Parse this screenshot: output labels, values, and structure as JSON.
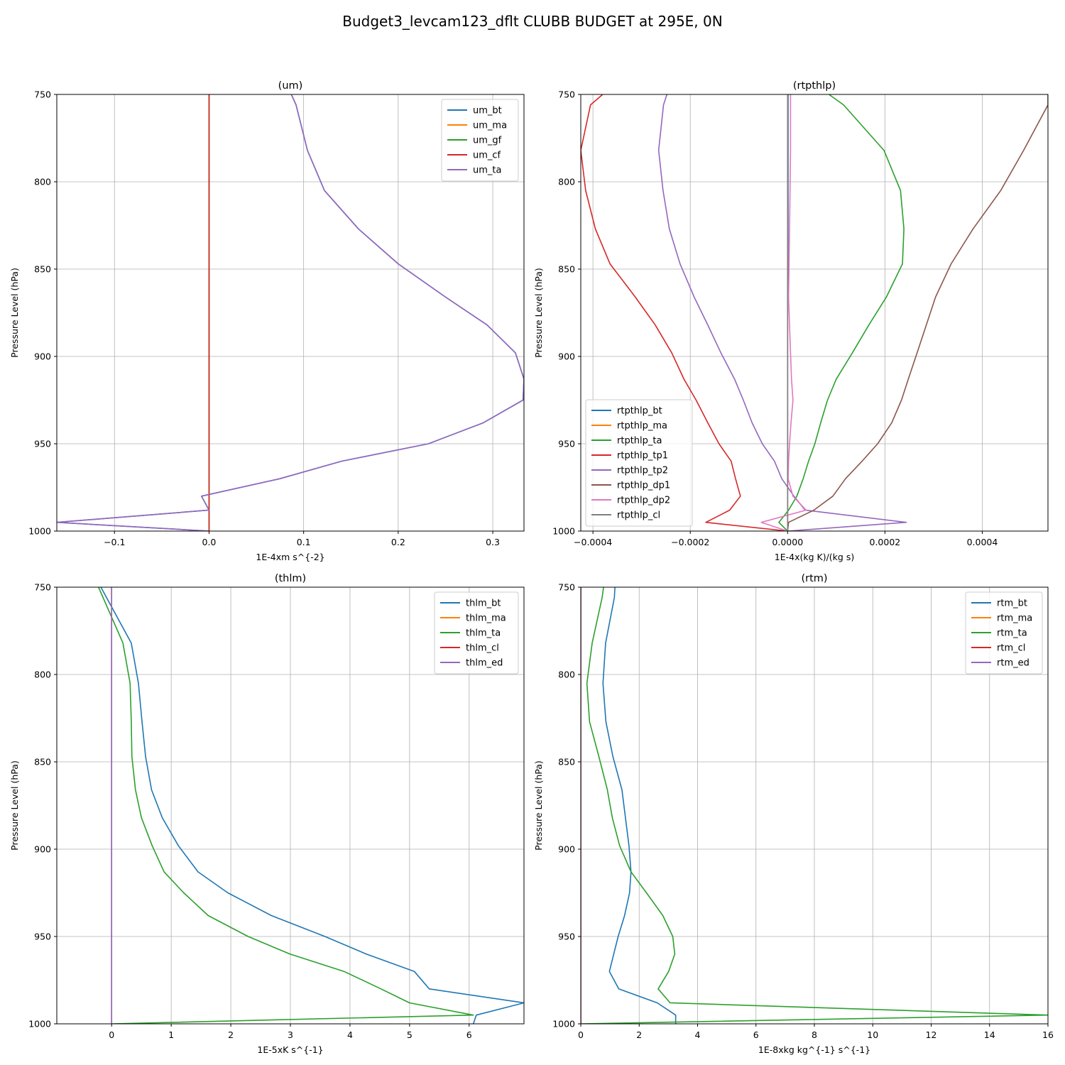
{
  "suptitle": "Budget3_levcam123_dflt CLUBB BUDGET at 295E, 0N",
  "chart_data": [
    {
      "type": "line",
      "title": "(um)",
      "xlabel": "1E-4xm s^{-2}",
      "ylabel": "Pressure Level (hPa)",
      "xlim": [
        -0.161,
        0.333
      ],
      "ylim": [
        1000,
        750
      ],
      "xticks": [
        -0.1,
        0.0,
        0.1,
        0.2,
        0.3
      ],
      "xticklabels": [
        "−0.1",
        "0.0",
        "0.1",
        "0.2",
        "0.3"
      ],
      "yticks": [
        750,
        800,
        850,
        900,
        950,
        1000
      ],
      "grid": true,
      "legend_loc": "upper right",
      "p": [
        750,
        756,
        782,
        805,
        827,
        847,
        866,
        882,
        898,
        913,
        925,
        938,
        950,
        960,
        970,
        980,
        988,
        995,
        1000
      ],
      "series": [
        {
          "name": "um_bt",
          "color": "#1f77b4",
          "values": [
            0.087,
            0.092,
            0.104,
            0.122,
            0.158,
            0.2,
            0.25,
            0.294,
            0.324,
            0.333,
            0.332,
            0.29,
            0.232,
            0.14,
            0.075,
            -0.008,
            0.0,
            -0.161,
            0.0
          ]
        },
        {
          "name": "um_ma",
          "color": "#ff7f0e",
          "values": [
            0,
            0,
            0,
            0,
            0,
            0,
            0,
            0,
            0,
            0,
            0,
            0,
            0,
            0,
            0,
            0,
            0,
            0,
            0
          ]
        },
        {
          "name": "um_gf",
          "color": "#2ca02c",
          "values": [
            0,
            0,
            0,
            0,
            0,
            0,
            0,
            0,
            0,
            0,
            0,
            0,
            0,
            0,
            0,
            0,
            0,
            0,
            0
          ]
        },
        {
          "name": "um_cf",
          "color": "#d62728",
          "values": [
            0,
            0,
            0,
            0,
            0,
            0,
            0,
            0,
            0,
            0,
            0,
            0,
            0,
            0,
            0,
            0,
            0,
            0,
            0
          ]
        },
        {
          "name": "um_ta",
          "color": "#9467bd",
          "values": [
            0.087,
            0.092,
            0.104,
            0.122,
            0.158,
            0.2,
            0.25,
            0.294,
            0.324,
            0.333,
            0.332,
            0.29,
            0.232,
            0.14,
            0.075,
            -0.008,
            0.0,
            -0.161,
            0.0
          ]
        }
      ]
    },
    {
      "type": "line",
      "title": "(rtpthlp)",
      "xlabel": "1E-4x(kg K)/(kg s)",
      "ylabel": "Pressure Level (hPa)",
      "xlim": [
        -0.000425,
        0.000535
      ],
      "ylim": [
        1000,
        750
      ],
      "xticks": [
        -0.0004,
        -0.0002,
        0.0,
        0.0002,
        0.0004
      ],
      "xticklabels": [
        "−0.0004",
        "−0.0002",
        "0.0000",
        "0.0002",
        "0.0004"
      ],
      "yticks": [
        750,
        800,
        850,
        900,
        950,
        1000
      ],
      "grid": true,
      "legend_loc": "lower left",
      "p": [
        750,
        756,
        782,
        805,
        827,
        847,
        866,
        882,
        898,
        913,
        925,
        938,
        950,
        960,
        970,
        980,
        988,
        995,
        1000
      ],
      "series": [
        {
          "name": "rtpthlp_bt",
          "color": "#1f77b4",
          "values": [
            1e-06,
            1e-06,
            1e-06,
            1e-06,
            1e-06,
            1e-06,
            0.0,
            0.0,
            0.0,
            0.0,
            0.0,
            0.0,
            0.0,
            0.0,
            0.0,
            0.0,
            0.0,
            0.0,
            0.0
          ]
        },
        {
          "name": "rtpthlp_ma",
          "color": "#ff7f0e",
          "values": [
            0,
            0,
            0,
            0,
            0,
            0,
            0,
            0,
            0,
            0,
            0,
            0,
            0,
            0,
            0,
            0,
            0,
            0,
            0
          ]
        },
        {
          "name": "rtpthlp_ta",
          "color": "#2ca02c",
          "values": [
            8.5e-05,
            0.000115,
            0.000198,
            0.000232,
            0.000239,
            0.000236,
            0.000203,
            0.000167,
            0.000133,
            0.0001,
            8.2e-05,
            6.8e-05,
            5.6e-05,
            4.3e-05,
            3.2e-05,
            1.9e-05,
            2e-06,
            -1.8e-05,
            0.0
          ]
        },
        {
          "name": "rtpthlp_tp1",
          "color": "#d62728",
          "values": [
            -0.00038,
            -0.000405,
            -0.000425,
            -0.000415,
            -0.000395,
            -0.000365,
            -0.000313,
            -0.000272,
            -0.000238,
            -0.000213,
            -0.000188,
            -0.000164,
            -0.000141,
            -0.000116,
            -0.000107,
            -9.7e-05,
            -0.000119,
            -0.000168,
            0.0
          ]
        },
        {
          "name": "rtpthlp_tp2",
          "color": "#9467bd",
          "values": [
            -0.000248,
            -0.000255,
            -0.000265,
            -0.000256,
            -0.000243,
            -0.000221,
            -0.000192,
            -0.000164,
            -0.000137,
            -0.000109,
            -9.1e-05,
            -7.3e-05,
            -5.2e-05,
            -2.7e-05,
            -1.2e-05,
            1.3e-05,
            3.6e-05,
            0.000244,
            0.0
          ]
        },
        {
          "name": "rtpthlp_dp1",
          "color": "#8c564b",
          "values": [
            0.000535,
            0.000535,
            0.000485,
            0.000438,
            0.000381,
            0.000336,
            0.000304,
            0.000285,
            0.000266,
            0.000248,
            0.000234,
            0.000214,
            0.000185,
            0.000153,
            0.000119,
            9.3e-05,
            5.4e-05,
            2e-06,
            0.0
          ]
        },
        {
          "name": "rtpthlp_dp2",
          "color": "#e377c2",
          "values": [
            6e-06,
            6e-06,
            6e-06,
            5e-06,
            4e-06,
            3e-06,
            2e-06,
            4e-06,
            6e-06,
            8e-06,
            1.1e-05,
            7e-06,
            4e-06,
            2e-06,
            1e-06,
            1.1e-05,
            3.8e-05,
            -5.4e-05,
            0.0
          ]
        },
        {
          "name": "rtpthlp_cl",
          "color": "#7f7f7f",
          "values": [
            0,
            0,
            0,
            0,
            0,
            0,
            0,
            0,
            0,
            0,
            0,
            0,
            0,
            0,
            0,
            0,
            0,
            0,
            0
          ]
        }
      ]
    },
    {
      "type": "line",
      "title": "(thlm)",
      "xlabel": "1E-5xK s^{-1}",
      "ylabel": "Pressure Level (hPa)",
      "xlim": [
        -0.92,
        6.92
      ],
      "ylim": [
        1000,
        750
      ],
      "xticks": [
        0,
        1,
        2,
        3,
        4,
        5,
        6
      ],
      "xticklabels": [
        "0",
        "1",
        "2",
        "3",
        "4",
        "5",
        "6"
      ],
      "yticks": [
        750,
        800,
        850,
        900,
        950,
        1000
      ],
      "grid": true,
      "legend_loc": "upper right",
      "p": [
        750,
        782,
        805,
        827,
        847,
        866,
        882,
        898,
        913,
        925,
        938,
        950,
        960,
        970,
        980,
        988,
        995,
        1000
      ],
      "series": [
        {
          "name": "thlm_bt",
          "color": "#1f77b4",
          "values": [
            -0.18,
            0.33,
            0.45,
            0.51,
            0.57,
            0.67,
            0.85,
            1.12,
            1.45,
            1.95,
            2.68,
            3.58,
            4.27,
            5.08,
            5.33,
            6.92,
            6.12,
            6.07
          ]
        },
        {
          "name": "thlm_ma",
          "color": "#ff7f0e",
          "values": [
            0,
            0,
            0,
            0,
            0,
            0,
            0,
            0,
            0,
            0,
            0,
            0,
            0,
            0,
            0,
            0,
            0,
            0
          ]
        },
        {
          "name": "thlm_ta",
          "color": "#2ca02c",
          "values": [
            -0.22,
            0.19,
            0.31,
            0.33,
            0.34,
            0.4,
            0.5,
            0.68,
            0.88,
            1.21,
            1.62,
            2.29,
            2.99,
            3.9,
            4.52,
            5.0,
            6.07,
            0.0
          ]
        },
        {
          "name": "thlm_cl",
          "color": "#d62728",
          "values": [
            0,
            0,
            0,
            0,
            0,
            0,
            0,
            0,
            0,
            0,
            0,
            0,
            0,
            0,
            0,
            0,
            0,
            0
          ]
        },
        {
          "name": "thlm_ed",
          "color": "#9467bd",
          "values": [
            0,
            0,
            0,
            0,
            0,
            0,
            0,
            0,
            0,
            0,
            0,
            0,
            0,
            0,
            0,
            0,
            0,
            0
          ]
        }
      ]
    },
    {
      "type": "line",
      "title": "(rtm)",
      "xlabel": "1E-8xkg kg^{-1} s^{-1}",
      "ylabel": "Pressure Level (hPa)",
      "xlim": [
        0,
        16
      ],
      "ylim": [
        1000,
        750
      ],
      "xticks": [
        0,
        2,
        4,
        6,
        8,
        10,
        12,
        14,
        16
      ],
      "xticklabels": [
        "0",
        "2",
        "4",
        "6",
        "8",
        "10",
        "12",
        "14",
        "16"
      ],
      "yticks": [
        750,
        800,
        850,
        900,
        950,
        1000
      ],
      "grid": true,
      "legend_loc": "upper right",
      "p": [
        750,
        756,
        782,
        805,
        827,
        847,
        866,
        882,
        898,
        913,
        925,
        938,
        950,
        960,
        970,
        980,
        988,
        995,
        1000
      ],
      "series": [
        {
          "name": "rtm_bt",
          "color": "#1f77b4",
          "values": [
            1.17,
            1.15,
            0.85,
            0.76,
            0.86,
            1.1,
            1.41,
            1.53,
            1.65,
            1.72,
            1.67,
            1.5,
            1.28,
            1.13,
            0.98,
            1.3,
            2.62,
            3.25,
            3.25
          ]
        },
        {
          "name": "rtm_ma",
          "color": "#ff7f0e",
          "values": [
            0,
            0,
            0,
            0,
            0,
            0,
            0,
            0,
            0,
            0,
            0,
            0,
            0,
            0,
            0,
            0,
            0,
            0,
            0
          ]
        },
        {
          "name": "rtm_ta",
          "color": "#2ca02c",
          "values": [
            0.78,
            0.73,
            0.39,
            0.21,
            0.3,
            0.62,
            0.91,
            1.08,
            1.33,
            1.72,
            2.25,
            2.81,
            3.15,
            3.22,
            3.01,
            2.65,
            3.06,
            16.0,
            0.0
          ]
        },
        {
          "name": "rtm_cl",
          "color": "#d62728",
          "values": [
            0,
            0,
            0,
            0,
            0,
            0,
            0,
            0,
            0,
            0,
            0,
            0,
            0,
            0,
            0,
            0,
            0,
            0,
            0
          ]
        },
        {
          "name": "rtm_ed",
          "color": "#9467bd",
          "values": [
            0,
            0,
            0,
            0,
            0,
            0,
            0,
            0,
            0,
            0,
            0,
            0,
            0,
            0,
            0,
            0,
            0,
            0,
            0
          ]
        }
      ]
    }
  ]
}
